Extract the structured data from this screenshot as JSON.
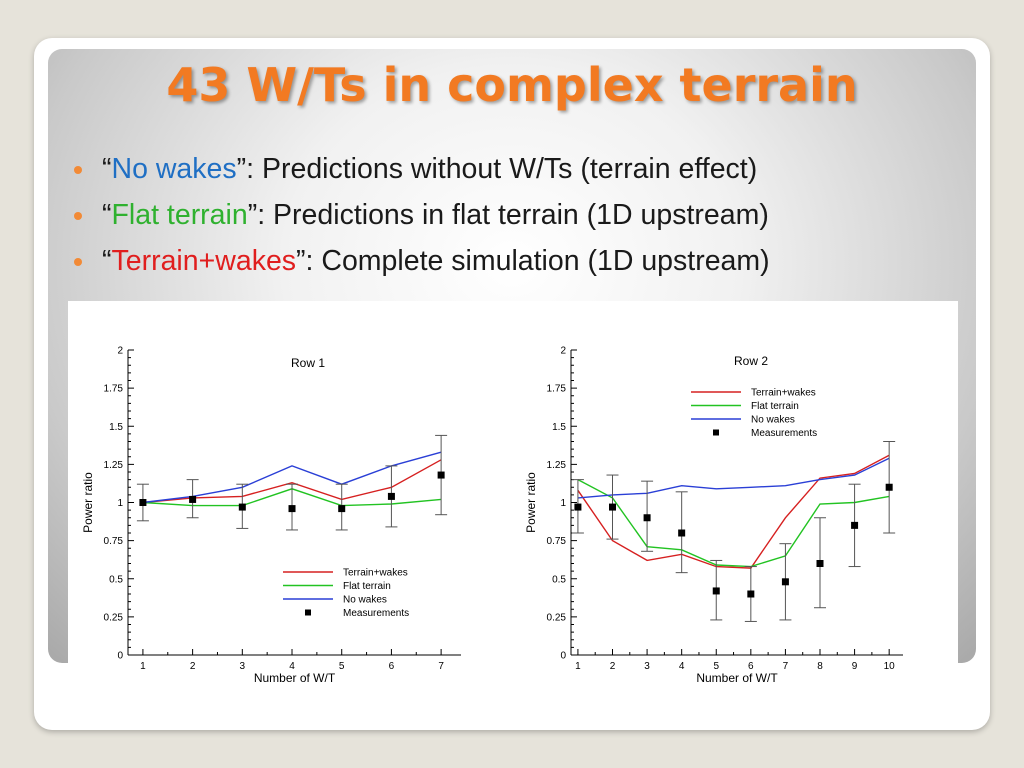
{
  "slide": {
    "title": "43 W/Ts in complex terrain",
    "bullets": [
      {
        "open": "“",
        "keyword": "No wakes",
        "rest": "”: Predictions without W/Ts (terrain effect)"
      },
      {
        "open": "“",
        "keyword": "Flat terrain",
        "rest": "”: Predictions in flat terrain (1D upstream)"
      },
      {
        "open": "“",
        "keyword": "Terrain+wakes",
        "rest": "”: Complete simulation (1D upstream)"
      }
    ]
  },
  "colors": {
    "accent_title": "#f27a22",
    "bullet_dot": "#f28a36",
    "terrain_wakes": "#d62020",
    "flat_terrain": "#22c322",
    "no_wakes": "#2a3fd6",
    "measurements": "#000000"
  },
  "chart_data": [
    {
      "type": "line",
      "title": "Row 1",
      "xlabel": "Number of W/T",
      "ylabel": "Power ratio",
      "xlim": [
        0.7,
        7.4
      ],
      "ylim": [
        0,
        2
      ],
      "xticks": [
        "1",
        "2",
        "3",
        "4",
        "5",
        "6",
        "7"
      ],
      "yticks": [
        "0",
        "0.25",
        "0.5",
        "0.75",
        "1",
        "1.25",
        "1.5",
        "1.75",
        "2"
      ],
      "legend_position": "bottom-right",
      "x": [
        1,
        2,
        3,
        4,
        5,
        6,
        7
      ],
      "series": [
        {
          "name": "Terrain+wakes",
          "color": "#d62020",
          "values": [
            1.0,
            1.03,
            1.04,
            1.13,
            1.02,
            1.1,
            1.28
          ]
        },
        {
          "name": "Flat terrain",
          "color": "#22c322",
          "values": [
            1.0,
            0.98,
            0.98,
            1.09,
            0.98,
            0.99,
            1.02
          ]
        },
        {
          "name": "No wakes",
          "color": "#2a3fd6",
          "values": [
            1.0,
            1.04,
            1.1,
            1.24,
            1.12,
            1.24,
            1.33
          ]
        }
      ],
      "measurements": {
        "name": "Measurements",
        "values": [
          1.0,
          1.02,
          0.97,
          0.96,
          0.96,
          1.04,
          1.18
        ],
        "err_low": [
          0.88,
          0.9,
          0.83,
          0.82,
          0.82,
          0.84,
          0.92
        ],
        "err_high": [
          1.12,
          1.15,
          1.12,
          1.12,
          1.12,
          1.24,
          1.44
        ]
      }
    },
    {
      "type": "line",
      "title": "Row 2",
      "xlabel": "Number of W/T",
      "ylabel": "Power ratio",
      "xlim": [
        0.8,
        10.4
      ],
      "ylim": [
        0,
        2
      ],
      "xticks": [
        "1",
        "2",
        "3",
        "4",
        "5",
        "6",
        "7",
        "8",
        "9",
        "10"
      ],
      "yticks": [
        "0",
        "0.25",
        "0.5",
        "0.75",
        "1",
        "1.25",
        "1.5",
        "1.75",
        "2"
      ],
      "legend_position": "top-right",
      "x": [
        1,
        2,
        3,
        4,
        5,
        6,
        7,
        8,
        9,
        10
      ],
      "series": [
        {
          "name": "Terrain+wakes",
          "color": "#d62020",
          "values": [
            1.08,
            0.75,
            0.62,
            0.66,
            0.58,
            0.57,
            0.9,
            1.16,
            1.19,
            1.31
          ]
        },
        {
          "name": "Flat terrain",
          "color": "#22c322",
          "values": [
            1.15,
            1.03,
            0.71,
            0.69,
            0.59,
            0.58,
            0.65,
            0.99,
            1.0,
            1.04
          ]
        },
        {
          "name": "No wakes",
          "color": "#2a3fd6",
          "values": [
            1.03,
            1.05,
            1.06,
            1.11,
            1.09,
            1.1,
            1.11,
            1.15,
            1.18,
            1.29
          ]
        }
      ],
      "measurements": {
        "name": "Measurements",
        "values": [
          0.97,
          0.97,
          0.9,
          0.8,
          0.42,
          0.4,
          0.48,
          0.6,
          0.85,
          1.1
        ],
        "err_low": [
          0.8,
          0.76,
          0.68,
          0.54,
          0.23,
          0.22,
          0.23,
          0.31,
          0.58,
          0.8
        ],
        "err_high": [
          1.15,
          1.18,
          1.14,
          1.07,
          0.62,
          0.58,
          0.73,
          0.9,
          1.12,
          1.4
        ]
      }
    }
  ]
}
